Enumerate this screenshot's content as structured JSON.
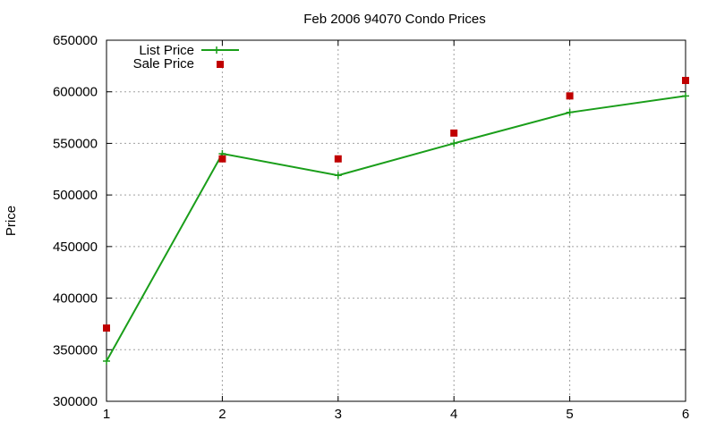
{
  "colors": {
    "list_price": "#1a9e1a",
    "sale_price": "#c00000",
    "grid": "#a0a0a0",
    "axis": "#000000"
  },
  "chart_data": {
    "type": "line",
    "title": "Feb 2006 94070 Condo Prices",
    "xlabel": "",
    "ylabel": "Price",
    "x": [
      1,
      2,
      3,
      4,
      5,
      6
    ],
    "xlim": [
      1,
      6
    ],
    "ylim": [
      300000,
      650000
    ],
    "xticks": [
      "1",
      "2",
      "3",
      "4",
      "5",
      "6"
    ],
    "yticks": [
      "300000",
      "350000",
      "400000",
      "450000",
      "500000",
      "550000",
      "600000",
      "650000"
    ],
    "grid": true,
    "legend_position": "top-left",
    "series": [
      {
        "name": "List Price",
        "style": "line-with-plus-markers",
        "color": "#1a9e1a",
        "values": [
          339000,
          540000,
          519000,
          550000,
          580000,
          596000
        ]
      },
      {
        "name": "Sale Price",
        "style": "square-markers",
        "color": "#c00000",
        "values": [
          371000,
          535000,
          535000,
          560000,
          596000,
          611000
        ]
      }
    ]
  }
}
